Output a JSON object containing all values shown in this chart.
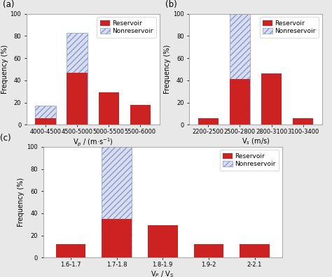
{
  "subplot_a": {
    "title": "(a)",
    "categories": [
      "4000-4500",
      "4500-5000",
      "5000-5500",
      "5500-6000"
    ],
    "reservoir": [
      6,
      47,
      29,
      18
    ],
    "nonreservoir": [
      17,
      83,
      0,
      0
    ],
    "nonreservoir_idx": [
      0,
      1
    ],
    "xlabel": "V$_p$ / (m·s$^{-1}$)",
    "ylabel": "Frequency (%)",
    "ylim": [
      0,
      100
    ],
    "yticks": [
      0,
      20,
      40,
      60,
      80,
      100
    ]
  },
  "subplot_b": {
    "title": "(b)",
    "categories": [
      "2200-2500",
      "2500-2800",
      "2800-3100",
      "3100-3400"
    ],
    "reservoir": [
      6,
      41,
      46,
      6
    ],
    "nonreservoir": [
      0,
      100,
      0,
      0
    ],
    "nonreservoir_idx": [
      1
    ],
    "xlabel": "V$_s$ (m/s)",
    "ylabel": "Frequency (%)",
    "ylim": [
      0,
      100
    ],
    "yticks": [
      0,
      20,
      40,
      60,
      80,
      100
    ]
  },
  "subplot_c": {
    "title": "(c)",
    "categories": [
      "1.6-1.7",
      "1.7-1.8",
      "1.8-1.9",
      "1.9-2",
      "2-2.1"
    ],
    "reservoir": [
      12,
      35,
      29,
      12,
      12
    ],
    "nonreservoir": [
      0,
      100,
      0,
      0,
      0
    ],
    "nonreservoir_idx": [
      1
    ],
    "xlabel": "V$_P$ / V$_S$",
    "ylabel": "Frequency (%)",
    "ylim": [
      0,
      100
    ],
    "yticks": [
      0,
      20,
      40,
      60,
      80,
      100
    ]
  },
  "reservoir_color": "#cc2222",
  "nonreservoir_facecolor": "#d8ddf0",
  "nonreservoir_edgecolor": "#8899cc",
  "hatch": "////",
  "bar_width": 0.65,
  "legend_fontsize": 6.5,
  "axis_label_fontsize": 7,
  "tick_fontsize": 6,
  "title_fontsize": 8.5,
  "panel_facecolor": "#ffffff",
  "fig_facecolor": "#e8e8e8"
}
